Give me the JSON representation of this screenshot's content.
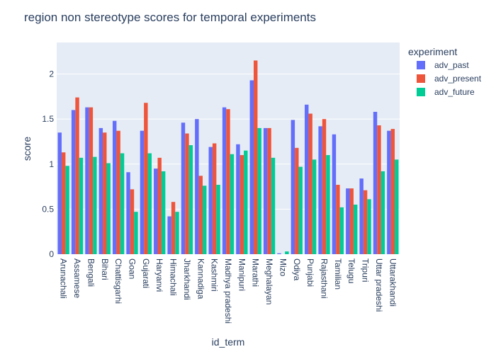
{
  "chart_data": {
    "type": "bar",
    "title": "region non stereotype scores for temporal experiments",
    "xlabel": "id_term",
    "ylabel": "score",
    "ylim": [
      0,
      2.35
    ],
    "yticks": [
      0,
      0.5,
      1,
      1.5,
      2
    ],
    "ytick_labels": [
      "0",
      "0.5",
      "1",
      "1.5",
      "2"
    ],
    "grid": true,
    "legend_title": "experiment",
    "legend_position": "top-right",
    "categories": [
      "Arunachali",
      "Assamese",
      "Bengali",
      "Bihari",
      "Chattisgarhi",
      "Goan",
      "Gujarati",
      "Haryanvi",
      "Himachali",
      "Jharkhandi",
      "Kannadiga",
      "Kashmiri",
      "Madhya pradeshi",
      "Manipuri",
      "Marathi",
      "Meghalayan",
      "Mizo",
      "Odiya",
      "Punjabi",
      "Rajasthani",
      "Tamilian",
      "Telugu",
      "Tripuri",
      "Uttar pradeshi",
      "Uttarakhandi"
    ],
    "series": [
      {
        "name": "adv_past",
        "color": "#636efa",
        "values": [
          1.35,
          1.6,
          1.63,
          1.4,
          1.48,
          0.91,
          1.37,
          0.95,
          0.42,
          1.46,
          1.5,
          1.19,
          1.63,
          1.22,
          1.93,
          1.4,
          0.01,
          1.49,
          1.66,
          1.42,
          1.33,
          0.73,
          0.84,
          1.58,
          1.37
        ]
      },
      {
        "name": "adv_present",
        "color": "#ef553b",
        "values": [
          1.13,
          1.74,
          1.63,
          1.35,
          1.37,
          0.72,
          1.68,
          1.07,
          0.58,
          1.34,
          0.87,
          1.23,
          1.61,
          1.1,
          2.15,
          1.4,
          0.0,
          1.18,
          1.56,
          1.5,
          0.77,
          0.73,
          0.71,
          1.43,
          1.39
        ]
      },
      {
        "name": "adv_future",
        "color": "#00cc96",
        "values": [
          0.98,
          1.07,
          1.08,
          1.01,
          1.12,
          0.47,
          1.12,
          0.92,
          0.47,
          1.21,
          0.76,
          0.77,
          1.11,
          1.15,
          1.4,
          1.07,
          0.03,
          0.97,
          1.05,
          1.1,
          0.52,
          0.55,
          0.61,
          0.92,
          1.05
        ]
      }
    ]
  }
}
